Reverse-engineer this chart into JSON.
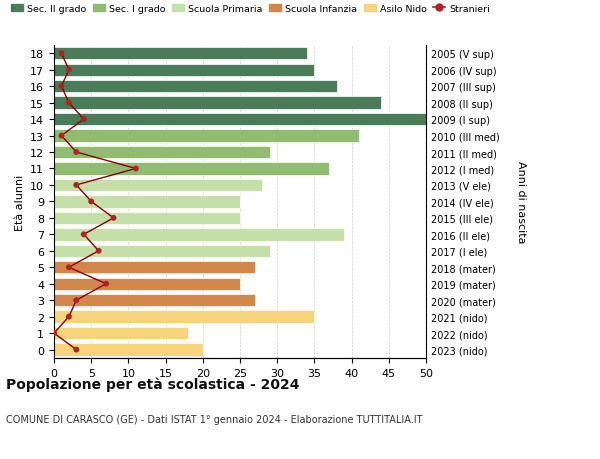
{
  "ages": [
    18,
    17,
    16,
    15,
    14,
    13,
    12,
    11,
    10,
    9,
    8,
    7,
    6,
    5,
    4,
    3,
    2,
    1,
    0
  ],
  "bar_values": [
    34,
    35,
    38,
    44,
    50,
    41,
    29,
    37,
    28,
    25,
    25,
    39,
    29,
    27,
    25,
    27,
    35,
    18,
    20
  ],
  "bar_colors": [
    "#4a7c59",
    "#4a7c59",
    "#4a7c59",
    "#4a7c59",
    "#4a7c59",
    "#8fbc6e",
    "#8fbc6e",
    "#8fbc6e",
    "#c5dfa8",
    "#c5dfa8",
    "#c5dfa8",
    "#c5dfa8",
    "#c5dfa8",
    "#d4874a",
    "#d4874a",
    "#d4874a",
    "#f5d47a",
    "#f5d47a",
    "#f5d47a"
  ],
  "stranieri_values": [
    1,
    2,
    1,
    2,
    4,
    1,
    3,
    11,
    3,
    5,
    8,
    4,
    6,
    2,
    7,
    3,
    2,
    0,
    3
  ],
  "right_labels": [
    "2005 (V sup)",
    "2006 (IV sup)",
    "2007 (III sup)",
    "2008 (II sup)",
    "2009 (I sup)",
    "2010 (III med)",
    "2011 (II med)",
    "2012 (I med)",
    "2013 (V ele)",
    "2014 (IV ele)",
    "2015 (III ele)",
    "2016 (II ele)",
    "2017 (I ele)",
    "2018 (mater)",
    "2019 (mater)",
    "2020 (mater)",
    "2021 (nido)",
    "2022 (nido)",
    "2023 (nido)"
  ],
  "ylabel_left": "Età alunni",
  "ylabel_right": "Anni di nascita",
  "title": "Popolazione per età scolastica - 2024",
  "subtitle": "COMUNE DI CARASCO (GE) - Dati ISTAT 1° gennaio 2024 - Elaborazione TUTTITALIA.IT",
  "xlim": [
    0,
    50
  ],
  "xticks": [
    0,
    5,
    10,
    15,
    20,
    25,
    30,
    35,
    40,
    45,
    50
  ],
  "legend_labels": [
    "Sec. II grado",
    "Sec. I grado",
    "Scuola Primaria",
    "Scuola Infanzia",
    "Asilo Nido",
    "Stranieri"
  ],
  "legend_colors": [
    "#4a7c59",
    "#8fbc6e",
    "#c5dfa8",
    "#d4874a",
    "#f5d47a",
    "#b22222"
  ],
  "bar_height": 0.75,
  "background_color": "#ffffff",
  "grid_color": "#cccccc",
  "stranieri_line_color": "#8b0000",
  "stranieri_dot_color": "#b22222"
}
